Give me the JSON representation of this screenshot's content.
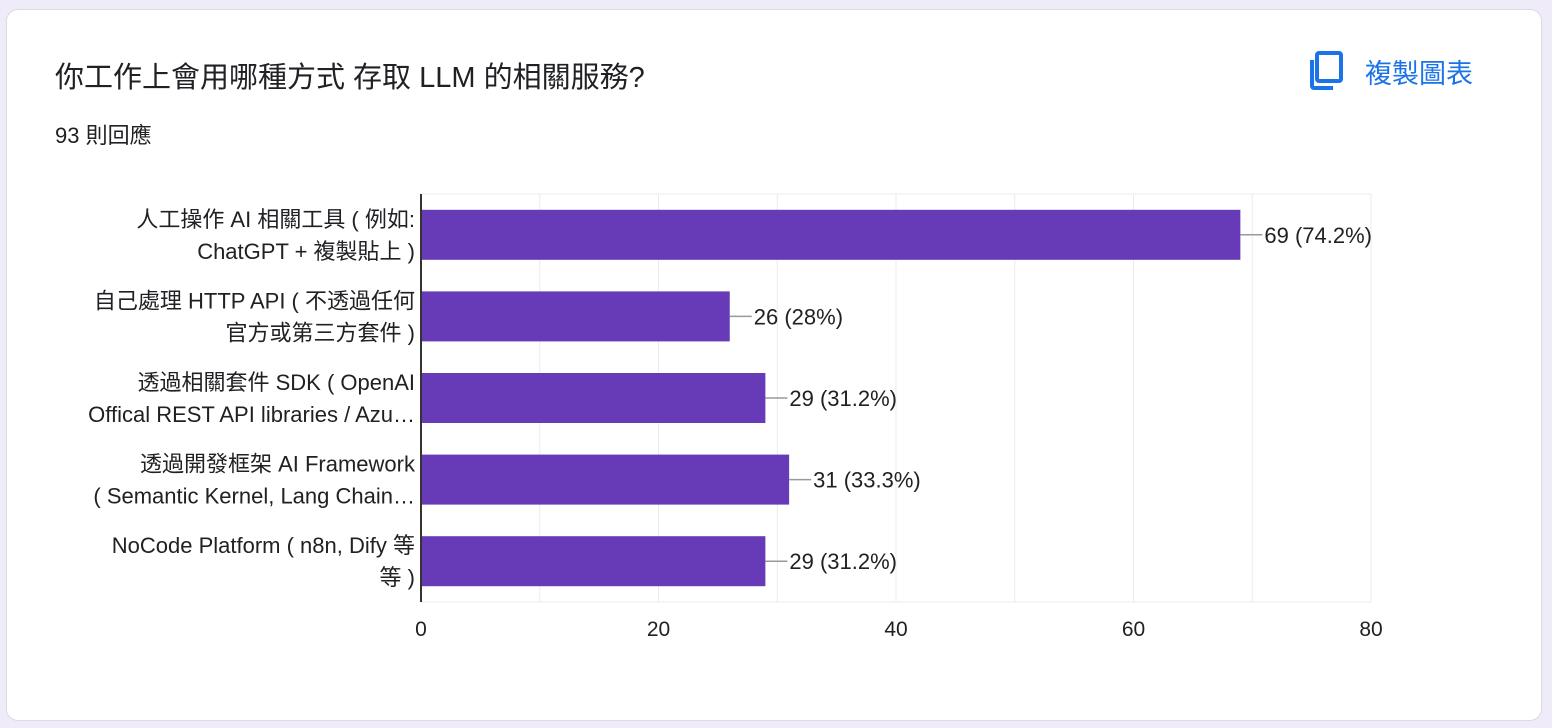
{
  "header": {
    "title": "你工作上會用哪種方式 存取 LLM 的相關服務?",
    "response_count": "93 則回應",
    "copy_chart_label": "複製圖表",
    "copy_icon": "content-copy-icon"
  },
  "colors": {
    "bar": "#673ab7",
    "accent": "#1a73e8",
    "text": "#202124",
    "axis": "#333333",
    "grid": "#ebebeb"
  },
  "chart_data": {
    "type": "bar",
    "orientation": "horizontal",
    "categories": [
      [
        "人工操作 AI 相關工具 ( 例如:",
        "ChatGPT + 複製貼上 )"
      ],
      [
        "自己處理 HTTP API ( 不透過任何",
        "官方或第三方套件 )"
      ],
      [
        "透過相關套件 SDK ( OpenAI",
        "Offical REST API libraries / Azu…"
      ],
      [
        "透過開發框架 AI Framework",
        "( Semantic Kernel, Lang Chain…"
      ],
      [
        "NoCode Platform ( n8n, Dify 等",
        "等 )"
      ]
    ],
    "values": [
      69,
      26,
      29,
      31,
      29
    ],
    "data_labels": [
      "69 (74.2%)",
      "26 (28%)",
      "29 (31.2%)",
      "31 (33.3%)",
      "29 (31.2%)"
    ],
    "x_ticks": [
      0,
      20,
      40,
      60,
      80
    ],
    "xlim": [
      0,
      80
    ],
    "minor_gridlines": true,
    "legend": "none"
  }
}
